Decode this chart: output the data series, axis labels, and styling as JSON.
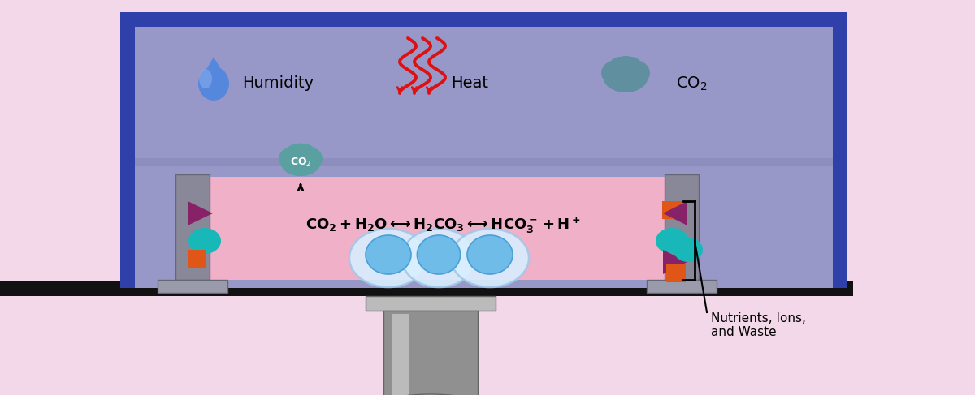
{
  "bg_color": "#f2d8e8",
  "incubator_outer_color": "#3040aa",
  "incubator_inner_color": "#9898c8",
  "dish_pink_color": "#f0b0c8",
  "dish_wall_color": "#888898",
  "dish_base_color": "#999aaa",
  "stage_color": "#111111",
  "humidity_text": "Humidity",
  "heat_text": "Heat",
  "co2_text_top": "CO$_2$",
  "nutrients_text": "Nutrients, Ions,\nand Waste",
  "teal_color": "#18b8b8",
  "orange_color": "#e05518",
  "purple_color": "#882268",
  "co2_cloud_color_top": "#5a9898",
  "co2_cloud_color_inner": "#5aA0A0",
  "water_line_color": "#8888b8",
  "drop_color": "#5588dd",
  "heat_color": "#dd1111",
  "mic_body_color": "#909090",
  "mic_light_color": "#bbbbbb",
  "mic_dark_color": "#666666"
}
